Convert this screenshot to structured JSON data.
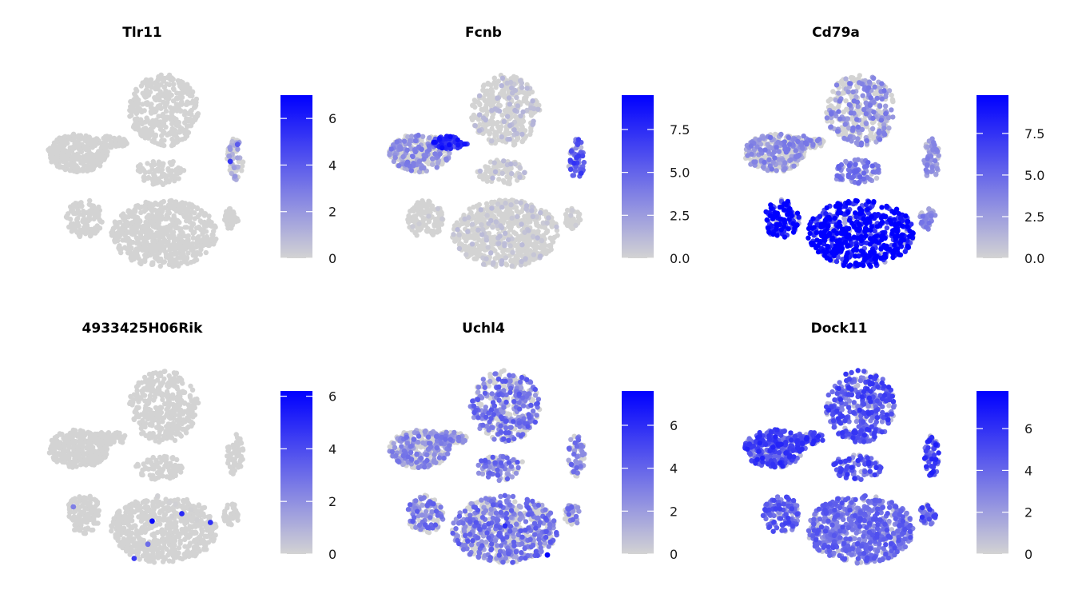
{
  "colors": {
    "low": "#d3d3d3",
    "high": "#0000ff",
    "background": "#ffffff"
  },
  "chart_data": [
    {
      "type": "scatter",
      "title": "Tlr11",
      "xlabel": "",
      "ylabel": "",
      "legend": "right",
      "legend_title": "",
      "color_scale": {
        "min": 0,
        "max": 7,
        "ticks": [
          "0",
          "2",
          "4",
          "6"
        ],
        "tick_values": [
          0,
          2,
          4,
          6
        ]
      },
      "expression_by_cluster": {
        "top": 0,
        "left": 0,
        "center": 0,
        "right": 0.1,
        "bottom": 0,
        "bottom_left": 0,
        "right_small": 0
      },
      "high_cells": [
        {
          "cluster": "right",
          "x": 0.2,
          "y": 0.55,
          "value": 5.2
        },
        {
          "cluster": "right",
          "x": 0.65,
          "y": 0.15,
          "value": 4.0
        }
      ]
    },
    {
      "type": "scatter",
      "title": "Fcnb",
      "xlabel": "",
      "ylabel": "",
      "legend": "right",
      "legend_title": "",
      "color_scale": {
        "min": 0,
        "max": 9.5,
        "ticks": [
          "0.0",
          "2.5",
          "5.0",
          "7.5"
        ],
        "tick_values": [
          0,
          2.5,
          5.0,
          7.5
        ]
      },
      "expression_by_cluster": {
        "top": 0.05,
        "left": 0.15,
        "left_hot": 0.8,
        "center": 0.05,
        "right": 0.55,
        "bottom": 0.04,
        "bottom_left": 0.02,
        "right_small": 0.02
      },
      "high_cells": []
    },
    {
      "type": "scatter",
      "title": "Cd79a",
      "xlabel": "",
      "ylabel": "",
      "legend": "right",
      "legend_title": "",
      "color_scale": {
        "min": 0,
        "max": 9.8,
        "ticks": [
          "0.0",
          "2.5",
          "5.0",
          "7.5"
        ],
        "tick_values": [
          0,
          2.5,
          5.0,
          7.5
        ]
      },
      "expression_by_cluster": {
        "top": 0.15,
        "left": 0.15,
        "center": 0.4,
        "right": 0.3,
        "bottom": 0.93,
        "bottom_left": 0.9,
        "right_small": 0.35
      },
      "high_cells": []
    },
    {
      "type": "scatter",
      "title": "4933425H06Rik",
      "xlabel": "",
      "ylabel": "",
      "legend": "right",
      "legend_title": "",
      "color_scale": {
        "min": 0,
        "max": 6.2,
        "ticks": [
          "0",
          "2",
          "4",
          "6"
        ],
        "tick_values": [
          0,
          2,
          4,
          6
        ]
      },
      "expression_by_cluster": {
        "top": 0,
        "left": 0,
        "center": 0,
        "right": 0,
        "bottom": 0.005,
        "bottom_left": 0,
        "right_small": 0
      },
      "high_cells": [
        {
          "cluster": "bottom",
          "x": 0.39,
          "y": 0.38,
          "value": 6.0
        },
        {
          "cluster": "bottom",
          "x": 0.67,
          "y": 0.27,
          "value": 5.0
        },
        {
          "cluster": "bottom",
          "x": 0.94,
          "y": 0.4,
          "value": 4.8
        },
        {
          "cluster": "bottom",
          "x": 0.22,
          "y": 0.93,
          "value": 4.5
        },
        {
          "cluster": "bottom",
          "x": 0.35,
          "y": 0.72,
          "value": 3.0
        },
        {
          "cluster": "bottom_left",
          "x": 0.2,
          "y": 0.3,
          "value": 2.5
        }
      ]
    },
    {
      "type": "scatter",
      "title": "Uchl4",
      "xlabel": "",
      "ylabel": "",
      "legend": "right",
      "legend_title": "",
      "color_scale": {
        "min": 0,
        "max": 7.6,
        "ticks": [
          "0",
          "2",
          "4",
          "6"
        ],
        "tick_values": [
          0,
          2,
          4,
          6
        ]
      },
      "expression_by_cluster": {
        "top": 0.2,
        "left": 0.16,
        "center": 0.2,
        "right": 0.18,
        "bottom": 0.2,
        "bottom_left": 0.2,
        "right_small": 0.18
      },
      "high_cells": [
        {
          "cluster": "bottom",
          "x": 0.9,
          "y": 0.88,
          "value": 7.5
        },
        {
          "cluster": "bottom",
          "x": 0.5,
          "y": 0.45,
          "value": 6.0
        }
      ]
    },
    {
      "type": "scatter",
      "title": "Dock11",
      "xlabel": "",
      "ylabel": "",
      "legend": "right",
      "legend_title": "",
      "color_scale": {
        "min": 0,
        "max": 7.8,
        "ticks": [
          "0",
          "2",
          "4",
          "6"
        ],
        "tick_values": [
          0,
          2,
          4,
          6
        ]
      },
      "expression_by_cluster": {
        "top": 0.55,
        "left": 0.6,
        "center": 0.55,
        "right": 0.62,
        "bottom": 0.45,
        "bottom_left": 0.5,
        "right_small": 0.55
      },
      "high_cells": []
    }
  ]
}
